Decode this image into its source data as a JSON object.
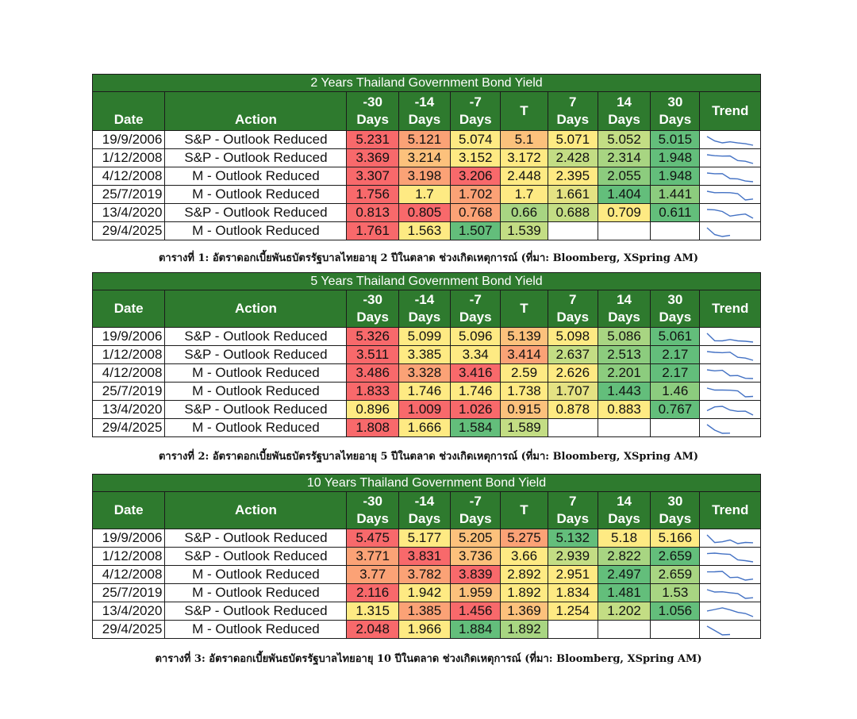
{
  "colors": {
    "header_green": "#2e7a2e",
    "red": "#f8696b",
    "orange": "#fba276",
    "yellow": "#feea83",
    "light_green": "#c3dd84",
    "green": "#63be7b",
    "trend_line": "#4472c4"
  },
  "tables": [
    {
      "title": "2 Years Thailand Government Bond Yield",
      "headers": [
        "Date",
        "Action",
        "-30 Days",
        "-14 Days",
        "-7 Days",
        "T",
        "7 Days",
        "14 Days",
        "30 Days",
        "Trend"
      ],
      "rows": [
        {
          "date": "19/9/2006",
          "action": "S&P - Outlook Reduced",
          "values": [
            "5.231",
            "5.121",
            "5.074",
            "5.1",
            "5.071",
            "5.052",
            "5.015"
          ],
          "colors": [
            "#f8696b",
            "#fba276",
            "#feea83",
            "#fcc17c",
            "#feea83",
            "#c3dd84",
            "#63be7b"
          ],
          "trend": [
            5.231,
            5.121,
            5.074,
            5.1,
            5.071,
            5.052,
            5.015
          ]
        },
        {
          "date": "1/12/2008",
          "action": "S&P - Outlook Reduced",
          "values": [
            "3.369",
            "3.214",
            "3.152",
            "3.172",
            "2.428",
            "2.314",
            "1.948"
          ],
          "colors": [
            "#f8696b",
            "#fcc17c",
            "#feea83",
            "#feea83",
            "#c3dd84",
            "#a8d582",
            "#63be7b"
          ],
          "trend": [
            3.369,
            3.214,
            3.152,
            3.172,
            2.428,
            2.314,
            1.948
          ]
        },
        {
          "date": "4/12/2008",
          "action": "M - Outlook Reduced",
          "values": [
            "3.307",
            "3.198",
            "3.206",
            "2.448",
            "2.395",
            "2.055",
            "1.948"
          ],
          "colors": [
            "#f8696b",
            "#fba276",
            "#f8696b",
            "#feea83",
            "#feea83",
            "#8ccc7e",
            "#63be7b"
          ],
          "trend": [
            3.307,
            3.198,
            3.206,
            2.448,
            2.395,
            2.055,
            1.948
          ]
        },
        {
          "date": "25/7/2019",
          "action": "M - Outlook Reduced",
          "values": [
            "1.756",
            "1.7",
            "1.702",
            "1.7",
            "1.661",
            "1.404",
            "1.441"
          ],
          "colors": [
            "#f8696b",
            "#feea83",
            "#fba276",
            "#feea83",
            "#e4e283",
            "#63be7b",
            "#8ccc7e"
          ],
          "trend": [
            1.756,
            1.7,
            1.702,
            1.7,
            1.661,
            1.404,
            1.441
          ]
        },
        {
          "date": "13/4/2020",
          "action": "S&P - Outlook Reduced",
          "values": [
            "0.813",
            "0.805",
            "0.768",
            "0.66",
            "0.688",
            "0.709",
            "0.611"
          ],
          "colors": [
            "#f8696b",
            "#f8696b",
            "#fba276",
            "#a8d582",
            "#c3dd84",
            "#feea83",
            "#63be7b"
          ],
          "trend": [
            0.813,
            0.805,
            0.768,
            0.66,
            0.688,
            0.709,
            0.611
          ]
        },
        {
          "date": "29/4/2025",
          "action": "M - Outlook Reduced",
          "values": [
            "1.761",
            "1.563",
            "1.507",
            "1.539",
            "",
            "",
            ""
          ],
          "colors": [
            "#f8696b",
            "#feea83",
            "#63be7b",
            "#c3dd84",
            "#ffffff",
            "#ffffff",
            "#ffffff"
          ],
          "trend": [
            1.761,
            1.563,
            1.507,
            1.539
          ]
        }
      ],
      "caption": "ตารางที่ 1: อัตราดอกเบี้ยพันธบัตรรัฐบาลไทยอายุ 2 ปีในตลาด ช่วงเกิดเหตุการณ์ (ที่มา: Bloomberg, XSpring AM)"
    },
    {
      "title": "5 Years Thailand Government Bond Yield",
      "headers": [
        "Date",
        "Action",
        "-30 Days",
        "-14 Days",
        "-7 Days",
        "T",
        "7 Days",
        "14 Days",
        "30 Days",
        "Trend"
      ],
      "rows": [
        {
          "date": "19/9/2006",
          "action": "S&P - Outlook Reduced",
          "values": [
            "5.326",
            "5.099",
            "5.096",
            "5.139",
            "5.098",
            "5.086",
            "5.061"
          ],
          "colors": [
            "#f8696b",
            "#feea83",
            "#feea83",
            "#fcc17c",
            "#feea83",
            "#a8d582",
            "#63be7b"
          ],
          "trend": [
            5.326,
            5.099,
            5.096,
            5.139,
            5.098,
            5.086,
            5.061
          ]
        },
        {
          "date": "1/12/2008",
          "action": "S&P - Outlook Reduced",
          "values": [
            "3.511",
            "3.385",
            "3.34",
            "3.414",
            "2.637",
            "2.513",
            "2.17"
          ],
          "colors": [
            "#f8696b",
            "#feea83",
            "#feea83",
            "#fba276",
            "#c3dd84",
            "#8ccc7e",
            "#63be7b"
          ],
          "trend": [
            3.511,
            3.385,
            3.34,
            3.414,
            2.637,
            2.513,
            2.17
          ]
        },
        {
          "date": "4/12/2008",
          "action": "M - Outlook Reduced",
          "values": [
            "3.486",
            "3.328",
            "3.416",
            "2.59",
            "2.626",
            "2.201",
            "2.17"
          ],
          "colors": [
            "#f8696b",
            "#fba276",
            "#f8696b",
            "#feea83",
            "#feea83",
            "#8ccc7e",
            "#63be7b"
          ],
          "trend": [
            3.486,
            3.328,
            3.416,
            2.59,
            2.626,
            2.201,
            2.17
          ]
        },
        {
          "date": "25/7/2019",
          "action": "M - Outlook Reduced",
          "values": [
            "1.833",
            "1.746",
            "1.746",
            "1.738",
            "1.707",
            "1.443",
            "1.46"
          ],
          "colors": [
            "#f8696b",
            "#feea83",
            "#feea83",
            "#feea83",
            "#e4e283",
            "#63be7b",
            "#8ccc7e"
          ],
          "trend": [
            1.833,
            1.746,
            1.746,
            1.738,
            1.707,
            1.443,
            1.46
          ]
        },
        {
          "date": "13/4/2020",
          "action": "S&P - Outlook Reduced",
          "values": [
            "0.896",
            "1.009",
            "1.026",
            "0.915",
            "0.878",
            "0.883",
            "0.767"
          ],
          "colors": [
            "#feea83",
            "#f8696b",
            "#f8696b",
            "#fcc17c",
            "#feea83",
            "#feea83",
            "#63be7b"
          ],
          "trend": [
            0.896,
            1.009,
            1.026,
            0.915,
            0.878,
            0.883,
            0.767
          ]
        },
        {
          "date": "29/4/2025",
          "action": "M - Outlook Reduced",
          "values": [
            "1.808",
            "1.666",
            "1.584",
            "1.589",
            "",
            "",
            ""
          ],
          "colors": [
            "#f8696b",
            "#feea83",
            "#63be7b",
            "#c3dd84",
            "#ffffff",
            "#ffffff",
            "#ffffff"
          ],
          "trend": [
            1.808,
            1.666,
            1.584,
            1.589
          ]
        }
      ],
      "caption": "ตารางที่ 2: อัตราดอกเบี้ยพันธบัตรรัฐบาลไทยอายุ 5 ปีในตลาด ช่วงเกิดเหตุการณ์ (ที่มา: Bloomberg, XSpring AM)"
    },
    {
      "title": "10 Years Thailand Government Bond Yield",
      "headers": [
        "Date",
        "Action",
        "-30 Days",
        "-14 Days",
        "-7 Days",
        "T",
        "7 Days",
        "14 Days",
        "30 Days",
        "Trend"
      ],
      "rows": [
        {
          "date": "19/9/2006",
          "action": "S&P - Outlook Reduced",
          "values": [
            "5.475",
            "5.177",
            "5.205",
            "5.275",
            "5.132",
            "5.18",
            "5.166"
          ],
          "colors": [
            "#f8696b",
            "#feea83",
            "#fcc17c",
            "#fba276",
            "#63be7b",
            "#feea83",
            "#feea83"
          ],
          "trend": [
            5.475,
            5.177,
            5.205,
            5.275,
            5.132,
            5.18,
            5.166
          ]
        },
        {
          "date": "1/12/2008",
          "action": "S&P - Outlook Reduced",
          "values": [
            "3.771",
            "3.831",
            "3.736",
            "3.66",
            "2.939",
            "2.822",
            "2.659"
          ],
          "colors": [
            "#fba276",
            "#f8696b",
            "#fcc17c",
            "#feea83",
            "#c3dd84",
            "#a8d582",
            "#63be7b"
          ],
          "trend": [
            3.771,
            3.831,
            3.736,
            3.66,
            2.939,
            2.822,
            2.659
          ]
        },
        {
          "date": "4/12/2008",
          "action": "M - Outlook Reduced",
          "values": [
            "3.77",
            "3.782",
            "3.839",
            "2.892",
            "2.951",
            "2.497",
            "2.659"
          ],
          "colors": [
            "#fba276",
            "#fba276",
            "#f8696b",
            "#feea83",
            "#feea83",
            "#63be7b",
            "#a8d582"
          ],
          "trend": [
            3.77,
            3.782,
            3.839,
            2.892,
            2.951,
            2.497,
            2.659
          ]
        },
        {
          "date": "25/7/2019",
          "action": "M - Outlook Reduced",
          "values": [
            "2.116",
            "1.942",
            "1.959",
            "1.892",
            "1.834",
            "1.481",
            "1.53"
          ],
          "colors": [
            "#f8696b",
            "#feea83",
            "#fcc17c",
            "#feea83",
            "#feea83",
            "#63be7b",
            "#a8d582"
          ],
          "trend": [
            2.116,
            1.942,
            1.959,
            1.892,
            1.834,
            1.481,
            1.53
          ]
        },
        {
          "date": "13/4/2020",
          "action": "S&P - Outlook Reduced",
          "values": [
            "1.315",
            "1.385",
            "1.456",
            "1.369",
            "1.254",
            "1.202",
            "1.056"
          ],
          "colors": [
            "#feea83",
            "#fba276",
            "#f8696b",
            "#fcc17c",
            "#feea83",
            "#c3dd84",
            "#63be7b"
          ],
          "trend": [
            1.315,
            1.385,
            1.456,
            1.369,
            1.254,
            1.202,
            1.056
          ]
        },
        {
          "date": "29/4/2025",
          "action": "M - Outlook Reduced",
          "values": [
            "2.048",
            "1.966",
            "1.884",
            "1.892",
            "",
            "",
            ""
          ],
          "colors": [
            "#f8696b",
            "#feea83",
            "#63be7b",
            "#a8d582",
            "#ffffff",
            "#ffffff",
            "#ffffff"
          ],
          "trend": [
            2.048,
            1.966,
            1.884,
            1.892
          ]
        }
      ],
      "caption": "ตารางที่ 3: อัตราดอกเบี้ยพันธบัตรรัฐบาลไทยอายุ 10 ปีในตลาด ช่วงเกิดเหตุการณ์ (ที่มา: Bloomberg, XSpring AM)"
    }
  ]
}
